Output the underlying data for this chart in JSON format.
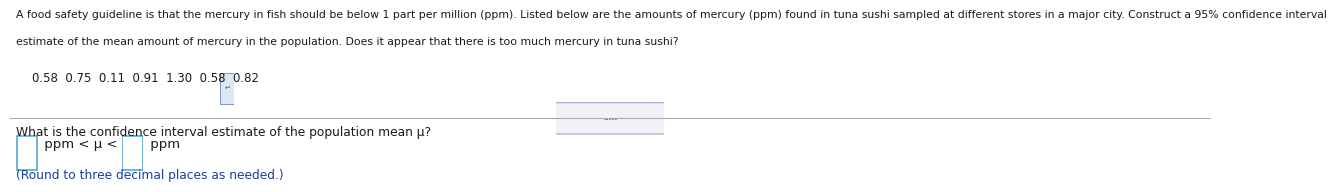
{
  "bg_color": "#ffffff",
  "header_line1": "A food safety guideline is that the mercury in fish should be below 1 part per million (ppm). Listed below are the amounts of mercury (ppm) found in tuna sushi sampled at different stores in a major city. Construct a 95% confidence interval",
  "header_line2": "estimate of the mean amount of mercury in the population. Does it appear that there is too much mercury in tuna sushi?",
  "data_line": "0.58  0.75  0.11  0.91  1.30  0.58  0.82",
  "divider_dots": ".....",
  "question_text": "What is the confidence interval estimate of the population mean μ?",
  "note_text": "(Round to three decimal places as needed.)",
  "header_fontsize": 7.8,
  "data_fontsize": 8.5,
  "question_fontsize": 8.8,
  "ci_fontsize": 9.5,
  "note_fontsize": 8.8,
  "note_color": "#1a3fa0",
  "text_color": "#1a1a1a",
  "divider_color": "#aaaaaa",
  "box_edge_color": "#55aacc",
  "pill_edge_color": "#aaaacc",
  "pill_face_color": "#f0f2f8",
  "pill_dot_color": "#666688"
}
